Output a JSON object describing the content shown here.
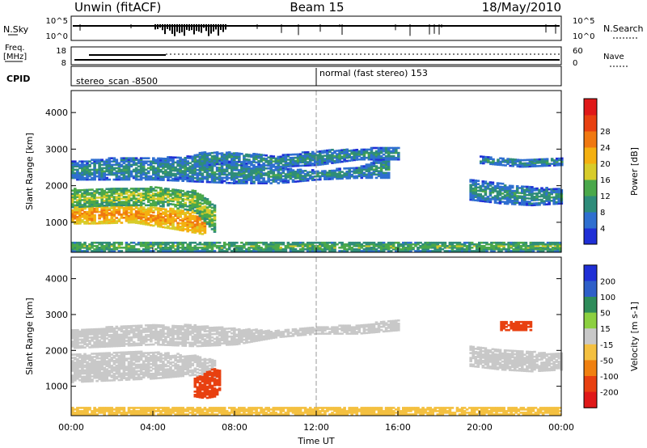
{
  "header": {
    "left_title": "Unwin (fitACF)",
    "center_title": "Beam 15",
    "right_title": "18/May/2010"
  },
  "top_panels": {
    "nsky_label": "N.Sky",
    "nsky_ticks": [
      "10^5",
      "10^0"
    ],
    "nsearch_label": "N.Search",
    "freq_label": "Freq.",
    "freq_unit": "[MHz]",
    "freq_ticks": [
      "18",
      "8"
    ],
    "nave_ticks": [
      "60",
      "0"
    ],
    "nave_label": "Nave",
    "cpid_label": "CPID",
    "cpid_entries": [
      "stereo_scan -8500",
      "normal (fast stereo) 153"
    ]
  },
  "chart_data": [
    {
      "type": "heatmap",
      "panel": "power",
      "xlabel": "",
      "ylabel": "Slant Range [km]",
      "x_ticks": [
        "00:00",
        "04:00",
        "08:00",
        "12:00",
        "16:00",
        "20:00",
        "00:00"
      ],
      "y_ticks": [
        "1000",
        "2000",
        "3000",
        "4000"
      ],
      "xlim": [
        0,
        24
      ],
      "ylim": [
        180,
        4600
      ],
      "colorbar": {
        "label": "Power [dB]",
        "ticks": [
          "4",
          "8",
          "12",
          "16",
          "20",
          "24",
          "28"
        ],
        "colors": [
          "#1f2fd6",
          "#2f6fd0",
          "#2e8c7a",
          "#4aa84a",
          "#d8cc2a",
          "#f4b010",
          "#f07810",
          "#e84010",
          "#e01818"
        ]
      },
      "echo_regions": [
        {
          "t": [
            0.0,
            1.0,
            3.0,
            5.0,
            6.5
          ],
          "r_low": [
            950,
            950,
            980,
            800,
            650
          ],
          "r_high": [
            1400,
            1450,
            1450,
            1350,
            1300
          ],
          "value": 22
        },
        {
          "t": [
            0.0,
            2.0,
            4.0,
            6.0,
            7.0
          ],
          "r_low": [
            1400,
            1450,
            1450,
            1300,
            700
          ],
          "r_high": [
            1900,
            1900,
            1950,
            1850,
            1500
          ],
          "value": 14
        },
        {
          "t": [
            0.0,
            2.0,
            4.0,
            6.0,
            8.0,
            10.0,
            12.0,
            14.0,
            15.5
          ],
          "r_low": [
            2150,
            2150,
            2150,
            2100,
            2050,
            2050,
            2150,
            2200,
            2200
          ],
          "r_high": [
            2650,
            2750,
            2750,
            2800,
            2650,
            2500,
            2400,
            2500,
            2800
          ],
          "value": 8
        },
        {
          "t": [
            6.0,
            8.0,
            10.0,
            12.0,
            14.0,
            16.0
          ],
          "r_low": [
            2500,
            2650,
            2500,
            2550,
            2700,
            2700
          ],
          "r_high": [
            2900,
            2900,
            2800,
            2950,
            3000,
            3050
          ],
          "value": 8
        },
        {
          "t": [
            19.5,
            21.0,
            22.5,
            24.0
          ],
          "r_low": [
            1600,
            1500,
            1450,
            1500
          ],
          "r_high": [
            2150,
            2050,
            1950,
            1900
          ],
          "value": 8
        },
        {
          "t": [
            20.0,
            22.0,
            24.0
          ],
          "r_low": [
            2600,
            2500,
            2550
          ],
          "r_high": [
            2800,
            2700,
            2750
          ],
          "value": 8
        },
        {
          "t": [
            0.0,
            24.0
          ],
          "r_low": [
            200,
            200
          ],
          "r_high": [
            450,
            450
          ],
          "value": 12
        }
      ]
    },
    {
      "type": "heatmap",
      "panel": "velocity",
      "xlabel": "Time UT",
      "ylabel": "Slant Range [km]",
      "x_ticks": [
        "00:00",
        "04:00",
        "08:00",
        "12:00",
        "16:00",
        "20:00",
        "00:00"
      ],
      "y_ticks": [
        "1000",
        "2000",
        "3000",
        "4000"
      ],
      "xlim": [
        0,
        24
      ],
      "ylim": [
        180,
        4600
      ],
      "colorbar": {
        "label": "Velocity [m s-1]",
        "ticks": [
          "200",
          "100",
          "50",
          "15",
          "-15",
          "-50",
          "-100",
          "-200"
        ],
        "colors": [
          "#1f2fd6",
          "#2e5fc8",
          "#2e8c5a",
          "#8cd040",
          "#c8c8c8",
          "#f4c040",
          "#f08010",
          "#e84010",
          "#e01818"
        ]
      },
      "echo_regions": [
        {
          "t": [
            0.0,
            2.0,
            4.0,
            6.0,
            7.0
          ],
          "r_low": [
            1100,
            1150,
            1200,
            1300,
            1100
          ],
          "r_high": [
            1900,
            1950,
            1950,
            1850,
            1700
          ],
          "value": 0
        },
        {
          "t": [
            0.0,
            2.0,
            4.0,
            6.0,
            8.0,
            10.0,
            12.0,
            14.0,
            16.0
          ],
          "r_low": [
            2050,
            2100,
            2150,
            2100,
            2150,
            2350,
            2450,
            2450,
            2550
          ],
          "r_high": [
            2550,
            2650,
            2700,
            2700,
            2600,
            2550,
            2650,
            2700,
            2850
          ],
          "value": 0
        },
        {
          "t": [
            6.0,
            6.5,
            7.0,
            7.3
          ],
          "r_low": [
            700,
            650,
            700,
            900
          ],
          "r_high": [
            1200,
            1350,
            1500,
            1400
          ],
          "value": -120
        },
        {
          "t": [
            19.5,
            21.0,
            22.5,
            24.0
          ],
          "r_low": [
            1550,
            1450,
            1400,
            1450
          ],
          "r_high": [
            2100,
            2000,
            1950,
            1900
          ],
          "value": 0
        },
        {
          "t": [
            21.0,
            22.5
          ],
          "r_low": [
            2550,
            2550
          ],
          "r_high": [
            2800,
            2800
          ],
          "value": -150
        },
        {
          "t": [
            0.0,
            24.0
          ],
          "r_low": [
            200,
            200
          ],
          "r_high": [
            400,
            400
          ],
          "value": -30
        }
      ]
    }
  ]
}
